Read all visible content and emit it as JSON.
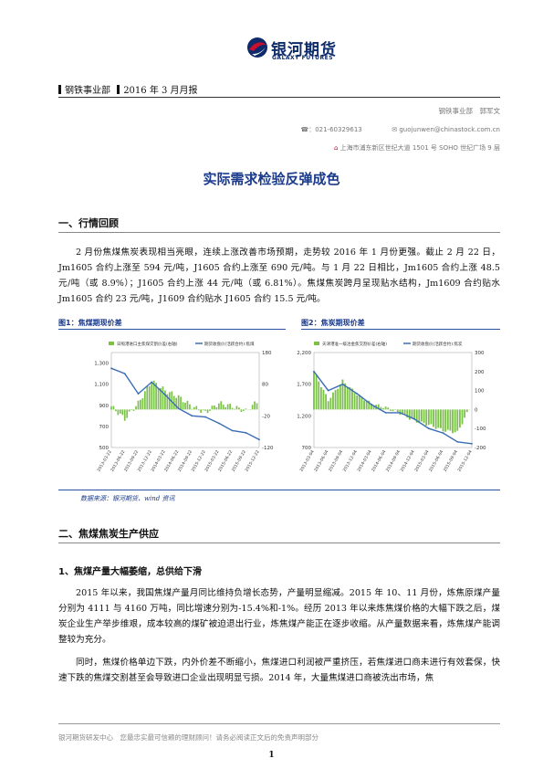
{
  "header": {
    "logo_cn": "银河期货",
    "logo_en": "GALAXY FUTURES",
    "dept": "钢铁事业部",
    "report_date": "2016 年 3 月月报",
    "author": "钢铁事业部　郭军文",
    "phone": "☎：021-60329613",
    "email": "guojunwen@chinastock.com.cn",
    "address": "上海市浦东新区世纪大道 1501 号 SOHO 世纪广场 9 层"
  },
  "title": "实际需求检验反弹成色",
  "section1": {
    "heading": "一、行情回顾",
    "para": "2 月份焦煤焦炭表现相当亮眼，连续上涨改善市场预期，走势较 2016 年 1 月份更强。截止 2 月 22 日，Jm1605 合约上涨至 594 元/吨，J1605 合约上涨至 690 元/吨。与 1 月 22 日相比，Jm1605 合约上涨 48.5 元/吨（或 8.9%）；J1605 合约上涨 44 元/吨（或 6.81%）。焦煤焦炭跨月呈现贴水结构，Jm1609 合约贴水 Jm1605 合约 23 元/吨，J1609 合约贴水 J1605 合约 15.5 元/吨。"
  },
  "figures": {
    "fig1_caption": "图1：焦煤期现价差",
    "fig2_caption": "图2：焦炭期现价差",
    "source": "数据来源：银河期货、wind 资讯"
  },
  "chart_data": [
    {
      "type": "line",
      "title": "图1：焦煤期现价差",
      "series": [
        {
          "name": "日照港进口主焦煤交割价差(右轴)",
          "type": "bar"
        },
        {
          "name": "期货收盘价(活跃合约):焦煤",
          "type": "line"
        }
      ],
      "x": [
        "2013-03-22",
        "2013-06-22",
        "2013-09-22",
        "2013-12-22",
        "2014-03-22",
        "2014-06-22",
        "2014-09-22",
        "2015-12-22",
        "2015-03-22",
        "2015-06-22",
        "2015-09-22",
        "2015-12-22"
      ],
      "y_left_ticks": [
        "1,300",
        "1,100",
        "900",
        "700",
        "500"
      ],
      "y_right_ticks": [
        "180",
        "80",
        "-20",
        "-120"
      ],
      "ylim_left": [
        500,
        1400
      ],
      "ylim_right": [
        -120,
        180
      ],
      "line_values": [
        1250,
        1200,
        1010,
        1120,
        1000,
        870,
        800,
        790,
        730,
        660,
        640,
        575
      ],
      "spread_values": [
        10,
        -30,
        20,
        90,
        60,
        40,
        10,
        -10,
        20,
        10,
        -5,
        30
      ]
    },
    {
      "type": "line",
      "title": "图2：焦炭期现价差",
      "series": [
        {
          "name": "天津港准一级冶金焦交割价差(右轴)",
          "type": "bar"
        },
        {
          "name": "期货收盘价(活跃合约):焦炭",
          "type": "line"
        }
      ],
      "x": [
        "2013-03-04",
        "2013-06-04",
        "2013-09-04",
        "2013-12-04",
        "2014-03-04",
        "2014-06-04",
        "2014-09-04",
        "2014-12-04",
        "2015-03-04",
        "2015-06-04",
        "2015-09-04",
        "2015-12-04"
      ],
      "y_left_ticks": [
        "2,200",
        "1,700",
        "1,200",
        "700"
      ],
      "y_right_ticks": [
        "300",
        "200",
        "100",
        "0",
        "-100",
        "-200"
      ],
      "ylim_left": [
        700,
        2200
      ],
      "ylim_right": [
        -200,
        300
      ],
      "line_values": [
        1900,
        1600,
        1700,
        1550,
        1380,
        1250,
        1250,
        1150,
        1000,
        930,
        790,
        760
      ],
      "spread_values": [
        200,
        50,
        150,
        80,
        30,
        10,
        -20,
        -60,
        -80,
        -110,
        -120,
        30
      ]
    }
  ],
  "section2": {
    "heading": "二、焦煤焦炭生产供应",
    "sub1": "1、焦煤产量大幅萎缩，总供给下滑",
    "para1": "2015 年以来，我国焦煤产量月同比维持负增长态势，产量明显缩减。2015 年 10、11 月份，炼焦原煤产量分别为 4111 与 4160 万吨，同比增速分别为-15.4%和-1%。经历 2013 年以来炼焦煤价格的大幅下跌之后，煤炭企业生产举步维艰，成本较高的煤矿被迫退出行业，炼焦煤产能正在逐步收缩。从产量数据来看，炼焦煤产能调整较为充分。",
    "para2": "同时，焦煤价格单边下跌，内外价差不断缩小，焦煤进口利润被严重挤压，若焦煤进口商未进行有效套保，快速下跌的焦煤交割甚至会导致进口企业出现明显亏损。2014 年，大量焦煤进口商被洗出市场，焦"
  },
  "footer": {
    "text": "银河期货研发中心　您最忠实最可信赖的理财顾问！请务必阅读正文后的免责声明部分",
    "page": "1"
  },
  "colors": {
    "accent": "#1a3a8c",
    "bar": "#7cc24a",
    "line": "#3a6db5",
    "logo_red": "#c8102e"
  }
}
